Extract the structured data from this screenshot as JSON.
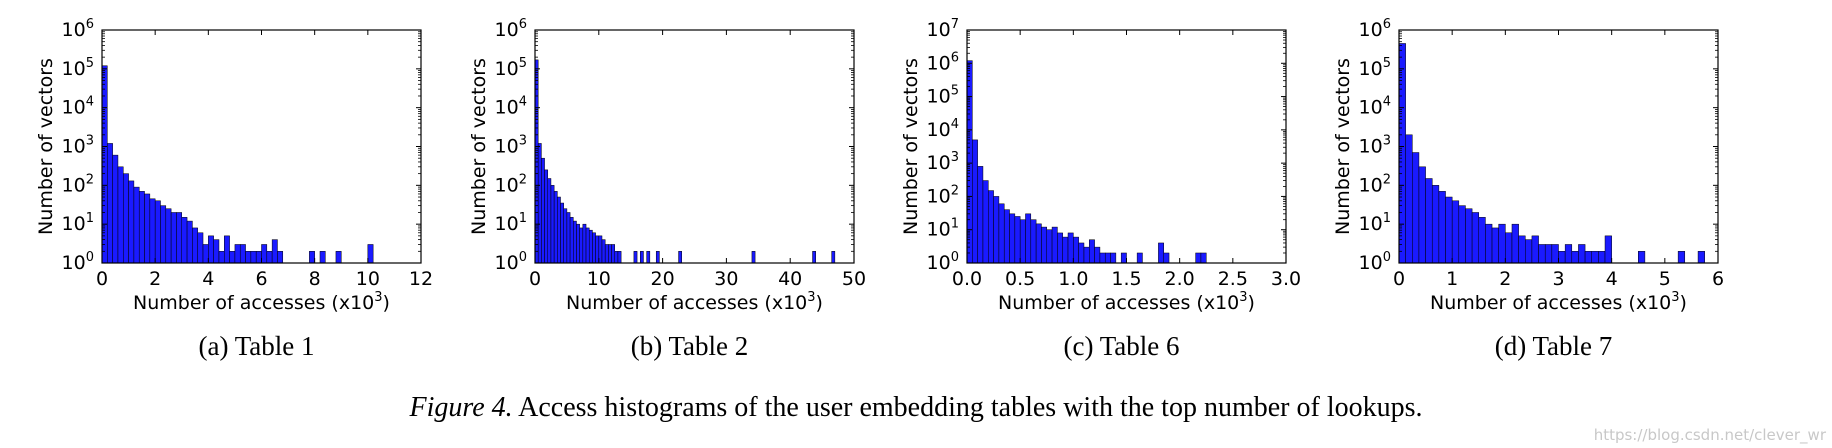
{
  "figure": {
    "caption_prefix": "Figure 4.",
    "caption_text": "Access histograms of the user embedding tables with the top number of lookups.",
    "watermark": "https://blog.csdn.net/clever_wr"
  },
  "colors": {
    "bar_fill": "#1a1aff",
    "bar_stroke": "#000000",
    "axis": "#000000",
    "background": "#ffffff"
  },
  "chart_data": [
    {
      "type": "bar",
      "subcaption": "(a) Table 1",
      "xlabel": "Number of accesses (x10",
      "xlabel_sup": "3",
      "xlabel_close": ")",
      "ylabel": "Number of vectors",
      "yscale": "log",
      "ylim_exp": [
        0,
        6
      ],
      "xlim": [
        0,
        12
      ],
      "xticks": [
        0,
        2,
        4,
        6,
        8,
        10,
        12
      ],
      "xtick_labels": [
        "0",
        "2",
        "4",
        "6",
        "8",
        "10",
        "12"
      ],
      "bin_width": 0.2,
      "bins": [
        [
          0.0,
          120000
        ],
        [
          0.2,
          1200
        ],
        [
          0.4,
          600
        ],
        [
          0.6,
          300
        ],
        [
          0.8,
          200
        ],
        [
          1.0,
          130
        ],
        [
          1.2,
          90
        ],
        [
          1.4,
          70
        ],
        [
          1.6,
          60
        ],
        [
          1.8,
          45
        ],
        [
          2.0,
          40
        ],
        [
          2.2,
          30
        ],
        [
          2.4,
          25
        ],
        [
          2.6,
          20
        ],
        [
          2.8,
          20
        ],
        [
          3.0,
          15
        ],
        [
          3.2,
          12
        ],
        [
          3.4,
          8
        ],
        [
          3.6,
          6
        ],
        [
          3.8,
          3
        ],
        [
          4.0,
          5
        ],
        [
          4.2,
          4
        ],
        [
          4.4,
          2
        ],
        [
          4.6,
          5
        ],
        [
          4.8,
          2
        ],
        [
          5.0,
          3
        ],
        [
          5.2,
          3
        ],
        [
          5.4,
          2
        ],
        [
          5.6,
          2
        ],
        [
          5.8,
          2
        ],
        [
          6.0,
          3
        ],
        [
          6.2,
          2
        ],
        [
          6.4,
          4
        ],
        [
          6.6,
          2
        ],
        [
          7.8,
          2
        ],
        [
          8.2,
          2
        ],
        [
          8.8,
          2
        ],
        [
          10.0,
          3
        ]
      ]
    },
    {
      "type": "bar",
      "subcaption": "(b) Table 2",
      "xlabel": "Number of accesses (x10",
      "xlabel_sup": "3",
      "xlabel_close": ")",
      "ylabel": "Number of vectors",
      "yscale": "log",
      "ylim_exp": [
        0,
        6
      ],
      "xlim": [
        0,
        50
      ],
      "xticks": [
        0,
        10,
        20,
        30,
        40,
        50
      ],
      "xtick_labels": [
        "0",
        "10",
        "20",
        "30",
        "40",
        "50"
      ],
      "bin_width": 0.5,
      "bins": [
        [
          0.0,
          170000
        ],
        [
          0.5,
          1200
        ],
        [
          1.0,
          500
        ],
        [
          1.5,
          250
        ],
        [
          2.0,
          150
        ],
        [
          2.5,
          100
        ],
        [
          3.0,
          70
        ],
        [
          3.5,
          50
        ],
        [
          4.0,
          35
        ],
        [
          4.5,
          25
        ],
        [
          5.0,
          20
        ],
        [
          5.5,
          15
        ],
        [
          6.0,
          12
        ],
        [
          6.5,
          10
        ],
        [
          7.0,
          8
        ],
        [
          7.5,
          10
        ],
        [
          8.0,
          8
        ],
        [
          8.5,
          7
        ],
        [
          9.0,
          6
        ],
        [
          9.5,
          5
        ],
        [
          10.0,
          5
        ],
        [
          10.5,
          4
        ],
        [
          11.0,
          3
        ],
        [
          11.5,
          3
        ],
        [
          12.0,
          3
        ],
        [
          12.5,
          2
        ],
        [
          13.0,
          2
        ],
        [
          15.5,
          2
        ],
        [
          16.5,
          2
        ],
        [
          17.5,
          2
        ],
        [
          19.0,
          2
        ],
        [
          22.5,
          2
        ],
        [
          34.0,
          2
        ],
        [
          43.5,
          2
        ],
        [
          46.5,
          2
        ]
      ]
    },
    {
      "type": "bar",
      "subcaption": "(c) Table 6",
      "xlabel": "Number of accesses (x10",
      "xlabel_sup": "3",
      "xlabel_close": ")",
      "ylabel": "Number of vectors",
      "yscale": "log",
      "ylim_exp": [
        0,
        7
      ],
      "xlim": [
        0,
        3.0
      ],
      "xticks": [
        0.0,
        0.5,
        1.0,
        1.5,
        2.0,
        2.5,
        3.0
      ],
      "xtick_labels": [
        "0.0",
        "0.5",
        "1.0",
        "1.5",
        "2.0",
        "2.5",
        "3.0"
      ],
      "bin_width": 0.05,
      "bins": [
        [
          0.0,
          1200000
        ],
        [
          0.05,
          5000
        ],
        [
          0.1,
          800
        ],
        [
          0.15,
          300
        ],
        [
          0.2,
          150
        ],
        [
          0.25,
          100
        ],
        [
          0.3,
          60
        ],
        [
          0.35,
          40
        ],
        [
          0.4,
          30
        ],
        [
          0.45,
          25
        ],
        [
          0.5,
          20
        ],
        [
          0.55,
          30
        ],
        [
          0.6,
          20
        ],
        [
          0.65,
          15
        ],
        [
          0.7,
          12
        ],
        [
          0.75,
          10
        ],
        [
          0.8,
          12
        ],
        [
          0.85,
          8
        ],
        [
          0.9,
          6
        ],
        [
          0.95,
          8
        ],
        [
          1.0,
          6
        ],
        [
          1.05,
          4
        ],
        [
          1.1,
          3
        ],
        [
          1.15,
          5
        ],
        [
          1.2,
          3
        ],
        [
          1.25,
          2
        ],
        [
          1.3,
          2
        ],
        [
          1.35,
          2
        ],
        [
          1.45,
          2
        ],
        [
          1.6,
          2
        ],
        [
          1.8,
          4
        ],
        [
          1.85,
          2
        ],
        [
          2.15,
          2
        ],
        [
          2.2,
          2
        ]
      ]
    },
    {
      "type": "bar",
      "subcaption": "(d) Table 7",
      "xlabel": "Number of accesses (x10",
      "xlabel_sup": "3",
      "xlabel_close": ")",
      "ylabel": "Number of vectors",
      "yscale": "log",
      "ylim_exp": [
        0,
        6
      ],
      "xlim": [
        0,
        6
      ],
      "xticks": [
        0,
        1,
        2,
        3,
        4,
        5,
        6
      ],
      "xtick_labels": [
        "0",
        "1",
        "2",
        "3",
        "4",
        "5",
        "6"
      ],
      "bin_width": 0.125,
      "bins": [
        [
          0.0,
          450000
        ],
        [
          0.125,
          2000
        ],
        [
          0.25,
          700
        ],
        [
          0.375,
          300
        ],
        [
          0.5,
          150
        ],
        [
          0.625,
          100
        ],
        [
          0.75,
          70
        ],
        [
          0.875,
          50
        ],
        [
          1.0,
          40
        ],
        [
          1.125,
          30
        ],
        [
          1.25,
          25
        ],
        [
          1.375,
          20
        ],
        [
          1.5,
          15
        ],
        [
          1.625,
          10
        ],
        [
          1.75,
          8
        ],
        [
          1.875,
          10
        ],
        [
          2.0,
          6
        ],
        [
          2.125,
          10
        ],
        [
          2.25,
          5
        ],
        [
          2.375,
          4
        ],
        [
          2.5,
          5
        ],
        [
          2.625,
          3
        ],
        [
          2.75,
          3
        ],
        [
          2.875,
          3
        ],
        [
          3.0,
          2
        ],
        [
          3.125,
          3
        ],
        [
          3.25,
          2
        ],
        [
          3.375,
          3
        ],
        [
          3.5,
          2
        ],
        [
          3.625,
          2
        ],
        [
          3.75,
          2
        ],
        [
          3.875,
          5
        ],
        [
          4.5,
          2
        ],
        [
          5.25,
          2
        ],
        [
          5.625,
          2
        ]
      ]
    }
  ]
}
